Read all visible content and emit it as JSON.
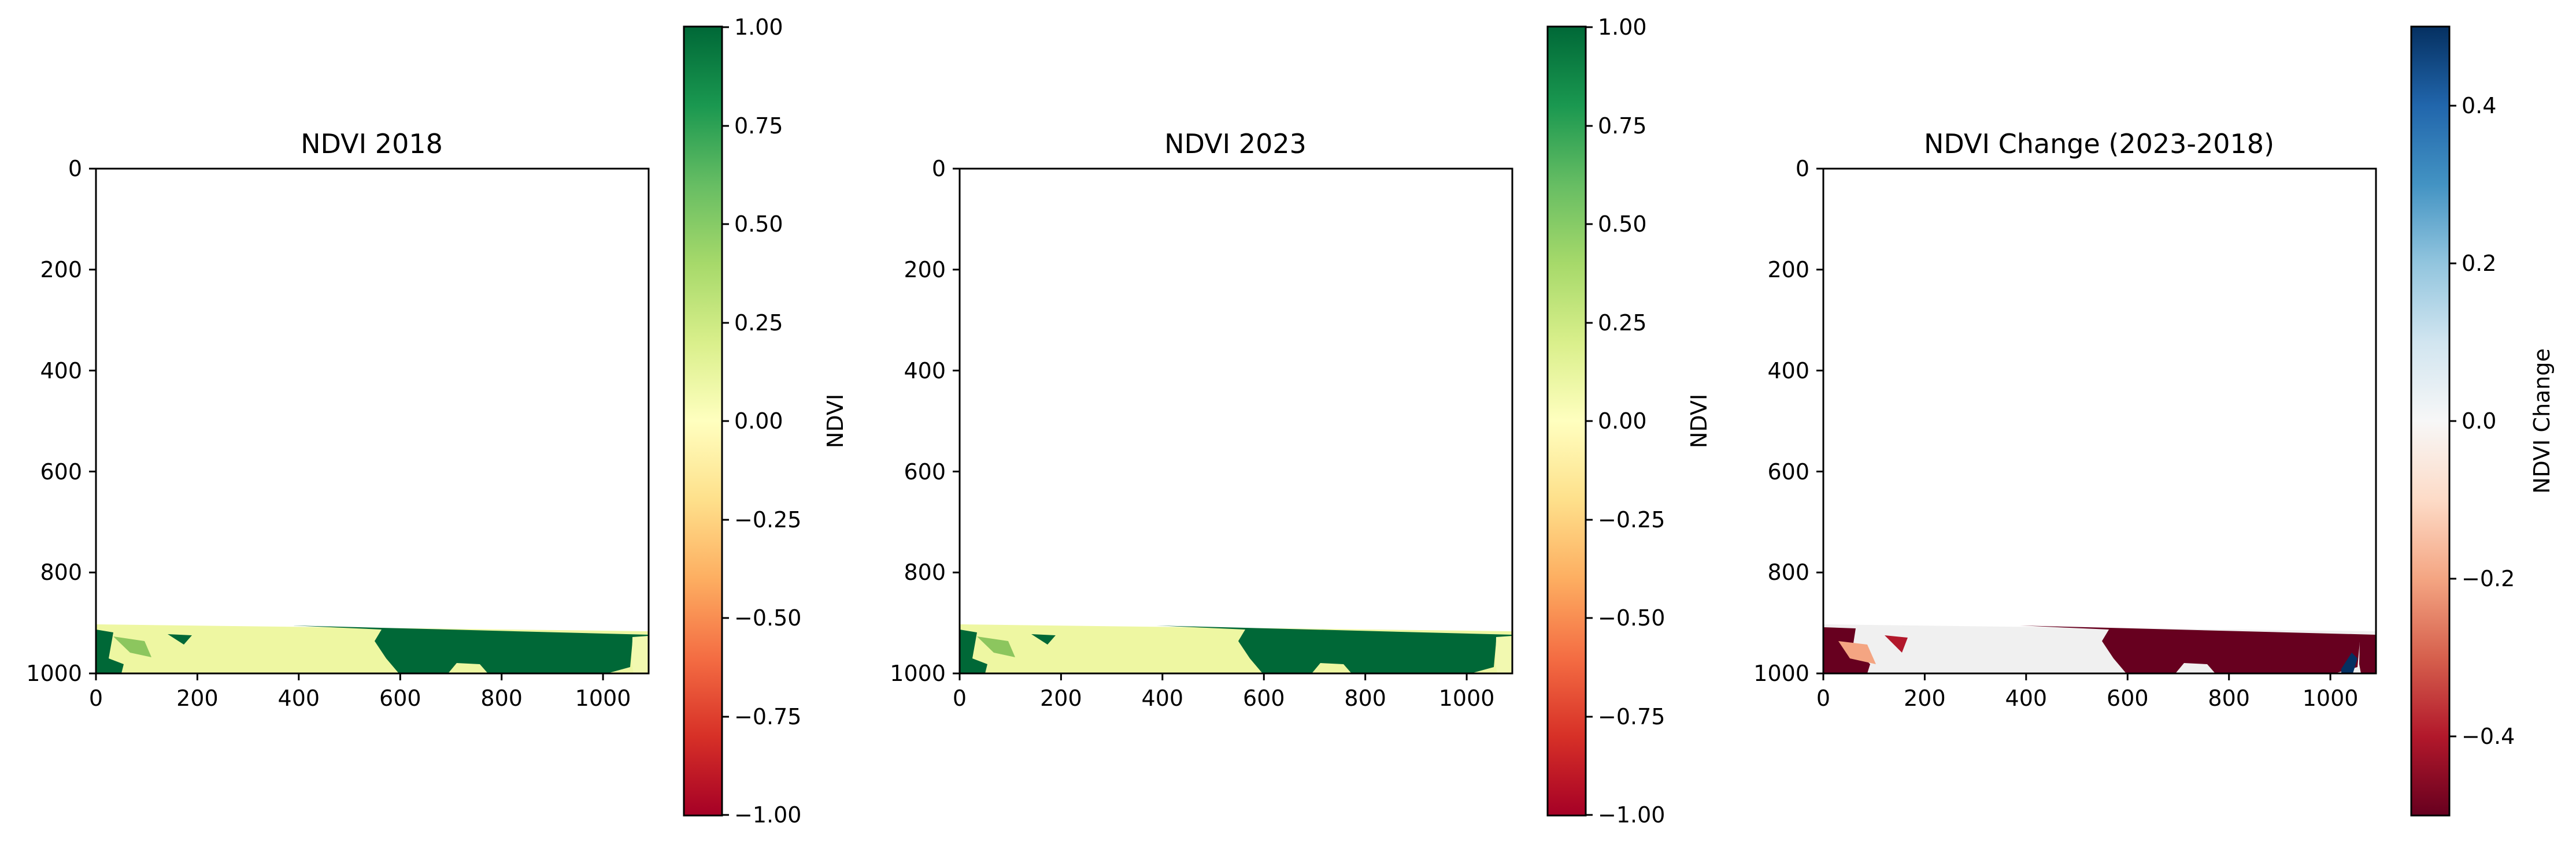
{
  "chart_data": [
    {
      "type": "heatmap",
      "title": "NDVI 2018",
      "xlim": [
        0,
        1090
      ],
      "ylim": [
        1000,
        0
      ],
      "y_inverted": true,
      "xticks": [
        0,
        200,
        400,
        600,
        800,
        1000
      ],
      "yticks": [
        0,
        200,
        400,
        600,
        800,
        1000
      ],
      "grid": false,
      "colormap": "RdYlGn",
      "colorbar": {
        "label": "NDVI",
        "range": [
          -1.0,
          1.0
        ],
        "ticks": [
          "1.00",
          "0.75",
          "0.50",
          "0.25",
          "0.00",
          "−0.25",
          "−0.50",
          "−0.75",
          "−1.00"
        ]
      },
      "data_extent": "valid pixels only in rows ~900-1000; rest is no-data (blank)",
      "dominant_value": 1.0,
      "secondary_value": 0.2
    },
    {
      "type": "heatmap",
      "title": "NDVI 2023",
      "xlim": [
        0,
        1090
      ],
      "ylim": [
        1000,
        0
      ],
      "y_inverted": true,
      "xticks": [
        0,
        200,
        400,
        600,
        800,
        1000
      ],
      "yticks": [
        0,
        200,
        400,
        600,
        800,
        1000
      ],
      "grid": false,
      "colormap": "RdYlGn",
      "colorbar": {
        "label": "NDVI",
        "range": [
          -1.0,
          1.0
        ],
        "ticks": [
          "1.00",
          "0.75",
          "0.50",
          "0.25",
          "0.00",
          "−0.25",
          "−0.50",
          "−0.75",
          "−1.00"
        ]
      },
      "data_extent": "valid pixels only in rows ~900-1000; rest is no-data (blank)",
      "dominant_value": 1.0,
      "secondary_value": 0.2
    },
    {
      "type": "heatmap",
      "title": "NDVI Change (2023-2018)",
      "xlim": [
        0,
        1090
      ],
      "ylim": [
        1000,
        0
      ],
      "y_inverted": true,
      "xticks": [
        0,
        200,
        400,
        600,
        800,
        1000
      ],
      "yticks": [
        0,
        200,
        400,
        600,
        800,
        1000
      ],
      "grid": false,
      "colormap": "RdBu",
      "colorbar": {
        "label": "NDVI Change",
        "range": [
          -0.5,
          0.5
        ],
        "ticks": [
          "0.4",
          "0.2",
          "0.0",
          "−0.2",
          "−0.4"
        ]
      },
      "data_extent": "valid pixels only in rows ~900-1000; rest is no-data (blank)",
      "dominant_value": -0.5,
      "secondary_value": 0.0
    }
  ],
  "colors": {
    "rdylgn_stops": [
      "#a50026",
      "#d73027",
      "#f46d43",
      "#fdae61",
      "#fee08b",
      "#ffffbf",
      "#d9ef8b",
      "#a6d96a",
      "#66bd63",
      "#1a9850",
      "#006837"
    ],
    "rdbu_stops": [
      "#67001f",
      "#b2182b",
      "#d6604d",
      "#f4a582",
      "#fddbc7",
      "#f7f7f7",
      "#d1e5f0",
      "#92c5de",
      "#4393c3",
      "#2166ac",
      "#053061"
    ],
    "ndvi_high": "#006837",
    "ndvi_low": "#f1f8a8",
    "change_negative": "#67001f",
    "change_neutral": "#f0f0f0",
    "change_positive": "#053061"
  }
}
